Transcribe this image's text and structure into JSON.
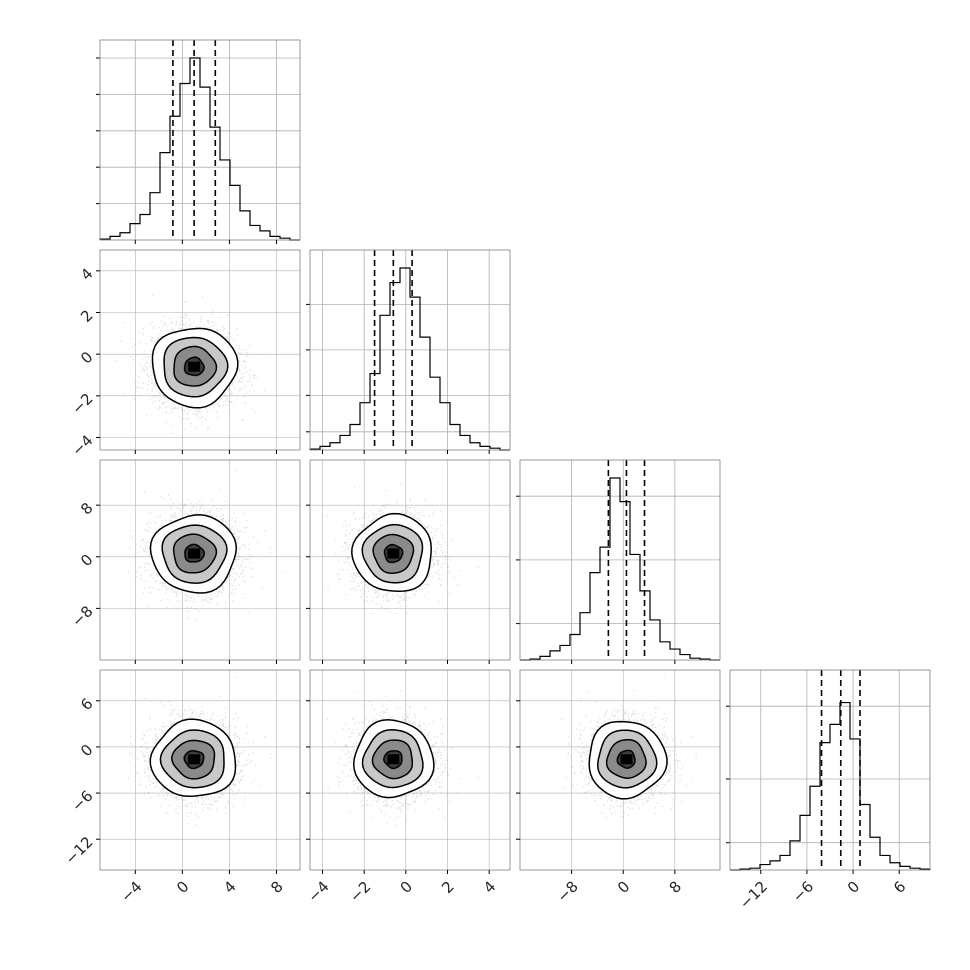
{
  "chart_data": {
    "type": "corner",
    "title": "",
    "parameters": [
      {
        "range": [
          -7,
          10
        ],
        "ticks": [
          -4,
          0,
          4,
          8
        ],
        "tick_labels": [
          "−4",
          "0",
          "4",
          "8"
        ],
        "mean": 1.0,
        "sd": 1.8,
        "quantiles": [
          -0.8,
          1.0,
          2.8
        ],
        "hist": [
          0.005,
          0.02,
          0.04,
          0.09,
          0.14,
          0.26,
          0.48,
          0.68,
          0.86,
          1.0,
          0.84,
          0.62,
          0.44,
          0.3,
          0.16,
          0.08,
          0.05,
          0.02,
          0.01,
          0.0
        ]
      },
      {
        "range": [
          -4.6,
          5.0
        ],
        "ticks": [
          -4,
          -2,
          0,
          2,
          4
        ],
        "tick_labels": [
          "−4",
          "−2",
          "0",
          "2",
          "4"
        ],
        "mean": -0.6,
        "sd": 0.95,
        "quantiles": [
          -1.5,
          -0.6,
          0.3
        ],
        "hist": [
          0.005,
          0.02,
          0.04,
          0.08,
          0.14,
          0.26,
          0.42,
          0.74,
          0.92,
          1.0,
          0.84,
          0.62,
          0.4,
          0.26,
          0.14,
          0.08,
          0.04,
          0.02,
          0.01,
          0.0
        ]
      },
      {
        "range": [
          -16,
          15
        ],
        "ticks": [
          -8,
          0,
          8
        ],
        "tick_labels": [
          "−8",
          "0",
          "8"
        ],
        "mean": 0.5,
        "sd": 3.0,
        "quantiles": [
          -2.3,
          0.5,
          3.3
        ],
        "hist": [
          0.0,
          0.005,
          0.02,
          0.05,
          0.08,
          0.14,
          0.26,
          0.48,
          0.62,
          1.0,
          0.87,
          0.58,
          0.38,
          0.22,
          0.1,
          0.06,
          0.03,
          0.01,
          0.005,
          0.0
        ]
      },
      {
        "range": [
          -16,
          10
        ],
        "ticks": [
          -12,
          -6,
          0,
          6
        ],
        "tick_labels": [
          "−12",
          "−6",
          "0",
          "6"
        ],
        "mean": -1.6,
        "sd": 2.5,
        "quantiles": [
          -4.1,
          -1.6,
          0.9
        ],
        "hist": [
          0.0,
          0.005,
          0.01,
          0.03,
          0.05,
          0.08,
          0.16,
          0.3,
          0.46,
          0.7,
          0.8,
          0.92,
          0.72,
          0.36,
          0.18,
          0.08,
          0.04,
          0.02,
          0.01,
          0.005
        ]
      }
    ],
    "diagonal_hist_yticks": [
      [
        0.2,
        0.4,
        0.6,
        0.8,
        1.0
      ],
      [
        0.1,
        0.3,
        0.55,
        0.8
      ],
      [
        0.2,
        0.55,
        0.9
      ],
      [
        0.15,
        0.5,
        0.9
      ]
    ],
    "pairs": [
      {
        "row": 1,
        "col": 0,
        "corr": -0.05
      },
      {
        "row": 2,
        "col": 0,
        "corr": 0.0
      },
      {
        "row": 2,
        "col": 1,
        "corr": 0.05
      },
      {
        "row": 3,
        "col": 0,
        "corr": 0.0
      },
      {
        "row": 3,
        "col": 1,
        "corr": 0.0
      },
      {
        "row": 3,
        "col": 2,
        "corr": 0.0
      }
    ],
    "contour_levels_sigma": [
      0.5,
      1.0,
      1.5,
      2.0
    ],
    "samples_per_panel": 3000,
    "grid": true,
    "colors": {
      "line": "#000000",
      "grid": "#b0b0b0",
      "frame": "#808080",
      "points": "#9e9e9e"
    }
  }
}
